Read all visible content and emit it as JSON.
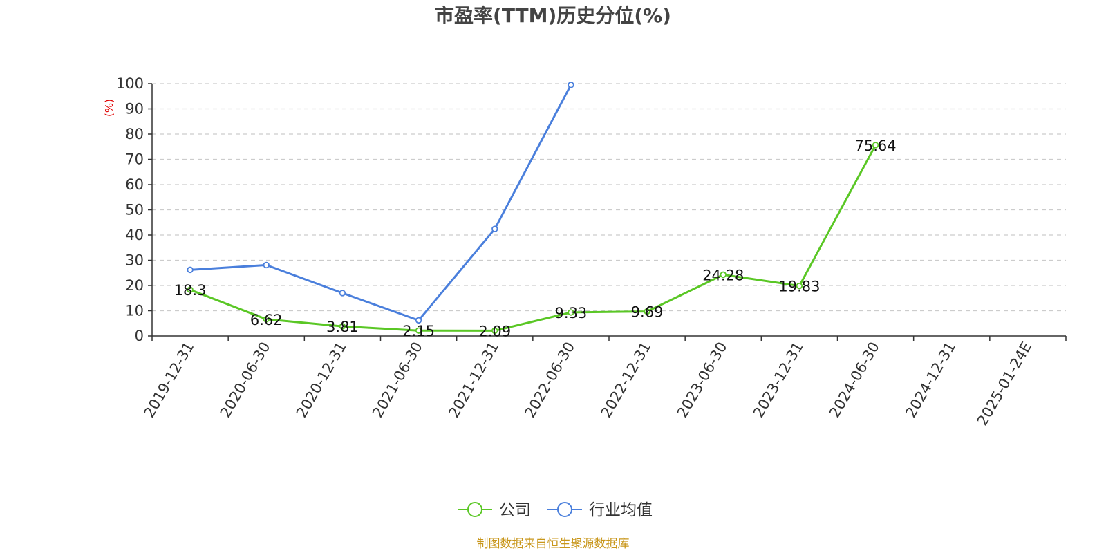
{
  "chart_data": {
    "type": "line",
    "title": "市盈率(TTM)历史分位(%)",
    "ylabel": "(%)",
    "ylim": [
      0,
      100
    ],
    "yticks": [
      0,
      10,
      20,
      30,
      40,
      50,
      60,
      70,
      80,
      90,
      100
    ],
    "grid": true,
    "legend_position": "bottom-center",
    "categories": [
      "2019-12-31",
      "2020-06-30",
      "2020-12-31",
      "2021-06-30",
      "2021-12-31",
      "2022-06-30",
      "2022-12-31",
      "2023-06-30",
      "2023-12-31",
      "2024-06-30",
      "2024-12-31",
      "2025-01-24E"
    ],
    "series": [
      {
        "name": "公司",
        "color": "#5ac725",
        "values": [
          18.3,
          6.62,
          3.81,
          2.15,
          2.09,
          9.33,
          9.69,
          24.28,
          19.83,
          75.64,
          null,
          null
        ],
        "labels": [
          "18.3",
          "6.62",
          "3.81",
          "2.15",
          "2.09",
          "9.33",
          "9.69",
          "24.28",
          "19.83",
          "75.64",
          "",
          ""
        ]
      },
      {
        "name": "行业均值",
        "color": "#4a7fdc",
        "values": [
          26.2,
          28.1,
          17.0,
          6.2,
          42.4,
          99.5,
          null,
          null,
          null,
          null,
          null,
          null
        ]
      }
    ],
    "source": "制图数据来自恒生聚源数据库"
  }
}
